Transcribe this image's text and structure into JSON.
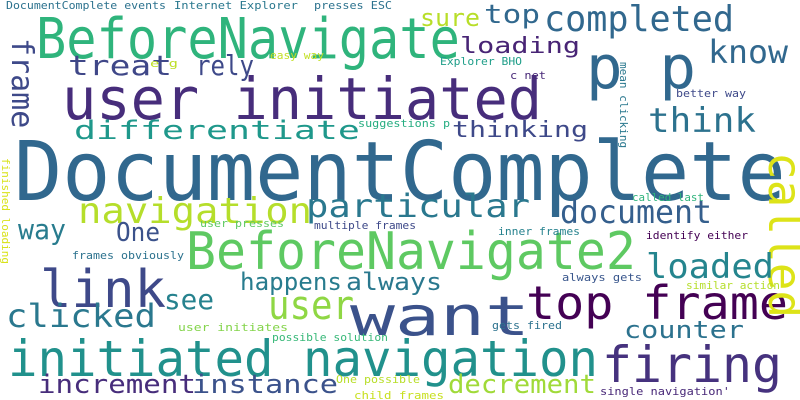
{
  "words": [
    {
      "id": "documentcomplete-big",
      "text": "DocumentComplete",
      "color": "#31688e"
    },
    {
      "id": "user-initiated",
      "text": "user initiated",
      "color": "#472d7b"
    },
    {
      "id": "beforenavigate",
      "text": "BeforeNavigate",
      "color": "#2fb47c"
    },
    {
      "id": "beforenavigate2",
      "text": "BeforeNavigate2",
      "color": "#5ec962"
    },
    {
      "id": "initiated-navigation",
      "text": "initiated navigation",
      "color": "#21918c"
    },
    {
      "id": "top-frame",
      "text": "top frame",
      "color": "#440154"
    },
    {
      "id": "link",
      "text": "link",
      "color": "#3e4989"
    },
    {
      "id": "want",
      "text": "want",
      "color": "#3b528b"
    },
    {
      "id": "firing",
      "text": "firing",
      "color": "#46327e"
    },
    {
      "id": "p-p",
      "text": "p p",
      "color": "#31688e"
    },
    {
      "id": "called",
      "text": "called",
      "color": "#dde318"
    },
    {
      "id": "completed",
      "text": "completed",
      "color": "#31688e"
    },
    {
      "id": "navigation",
      "text": "navigation",
      "color": "#b5de2b"
    },
    {
      "id": "particular",
      "text": "particular",
      "color": "#2a788e"
    },
    {
      "id": "document",
      "text": "document",
      "color": "#355f8d"
    },
    {
      "id": "user",
      "text": "user",
      "color": "#8fd744"
    },
    {
      "id": "differentiate",
      "text": "differentiate",
      "color": "#1f988b"
    },
    {
      "id": "treat",
      "text": "treat",
      "color": "#3f4788"
    },
    {
      "id": "frame",
      "text": "frame",
      "color": "#3e4989"
    },
    {
      "id": "know",
      "text": "know",
      "color": "#31688e"
    },
    {
      "id": "think",
      "text": "think",
      "color": "#2c728e"
    },
    {
      "id": "loaded",
      "text": "loaded",
      "color": "#25858e"
    },
    {
      "id": "clicked",
      "text": "clicked",
      "color": "#2a788e"
    },
    {
      "id": "increment",
      "text": "increment",
      "color": "#472d7b"
    },
    {
      "id": "instance",
      "text": "instance",
      "color": "#3b528b"
    },
    {
      "id": "decrement",
      "text": "decrement",
      "color": "#a0da39"
    },
    {
      "id": "counter",
      "text": "counter",
      "color": "#2c728e"
    },
    {
      "id": "see",
      "text": "see",
      "color": "#26828e"
    },
    {
      "id": "happens",
      "text": "happens",
      "color": "#287c8e"
    },
    {
      "id": "always",
      "text": "always",
      "color": "#2a788e"
    },
    {
      "id": "way",
      "text": "way",
      "color": "#287c8e"
    },
    {
      "id": "one",
      "text": "One",
      "color": "#3b528b"
    },
    {
      "id": "rely",
      "text": "rely",
      "color": "#3e4989"
    },
    {
      "id": "loading",
      "text": "loading",
      "color": "#482475"
    },
    {
      "id": "sure",
      "text": "sure",
      "color": "#b8de29"
    },
    {
      "id": "top",
      "text": "top",
      "color": "#31688e"
    },
    {
      "id": "thinking",
      "text": "thinking",
      "color": "#3e4989"
    },
    {
      "id": "documentcomplete-events",
      "text": "DocumentComplete events",
      "color": "#2c728e"
    },
    {
      "id": "internet-explorer",
      "text": "Internet Explorer",
      "color": "#2a788e"
    },
    {
      "id": "presses-esc",
      "text": "presses ESC",
      "color": "#2c728e"
    },
    {
      "id": "easy-way",
      "text": "easy way",
      "color": "#c2df23"
    },
    {
      "id": "explorer-bho",
      "text": "Explorer BHO",
      "color": "#1f9e89"
    },
    {
      "id": "c-net",
      "text": "c net",
      "color": "#482878"
    },
    {
      "id": "e-g",
      "text": "e g",
      "color": "#bddf26"
    },
    {
      "id": "mean-clicking",
      "text": "mean clicking",
      "color": "#2a788e"
    },
    {
      "id": "better-way",
      "text": "better way",
      "color": "#3e4989"
    },
    {
      "id": "suggestions-p",
      "text": "suggestions p",
      "color": "#26ad81"
    },
    {
      "id": "finished-loading",
      "text": "finished loading",
      "color": "#d8e219"
    },
    {
      "id": "called-last",
      "text": "called last",
      "color": "#2fb47c"
    },
    {
      "id": "user-presses",
      "text": "user presses",
      "color": "#5ec962"
    },
    {
      "id": "multiple-frames",
      "text": "multiple frames",
      "color": "#3e4989"
    },
    {
      "id": "inner-frames",
      "text": "inner frames",
      "color": "#26828e"
    },
    {
      "id": "identify-either",
      "text": "identify either",
      "color": "#440154"
    },
    {
      "id": "frames-obviously",
      "text": "frames obviously",
      "color": "#2c728e"
    },
    {
      "id": "always-gets",
      "text": "always gets",
      "color": "#39568c"
    },
    {
      "id": "similar-action",
      "text": "similar action",
      "color": "#b5de2b"
    },
    {
      "id": "user-initiates",
      "text": "user initiates",
      "color": "#84d44b"
    },
    {
      "id": "possible-solution",
      "text": "possible solution",
      "color": "#37b878"
    },
    {
      "id": "gets-fired",
      "text": "gets fired",
      "color": "#2c728e"
    },
    {
      "id": "one-possible",
      "text": "One possible",
      "color": "#b8de29"
    },
    {
      "id": "child-frames",
      "text": "child frames",
      "color": "#c8e020"
    },
    {
      "id": "single-navigation",
      "text": "single navigation'",
      "color": "#482878"
    }
  ]
}
